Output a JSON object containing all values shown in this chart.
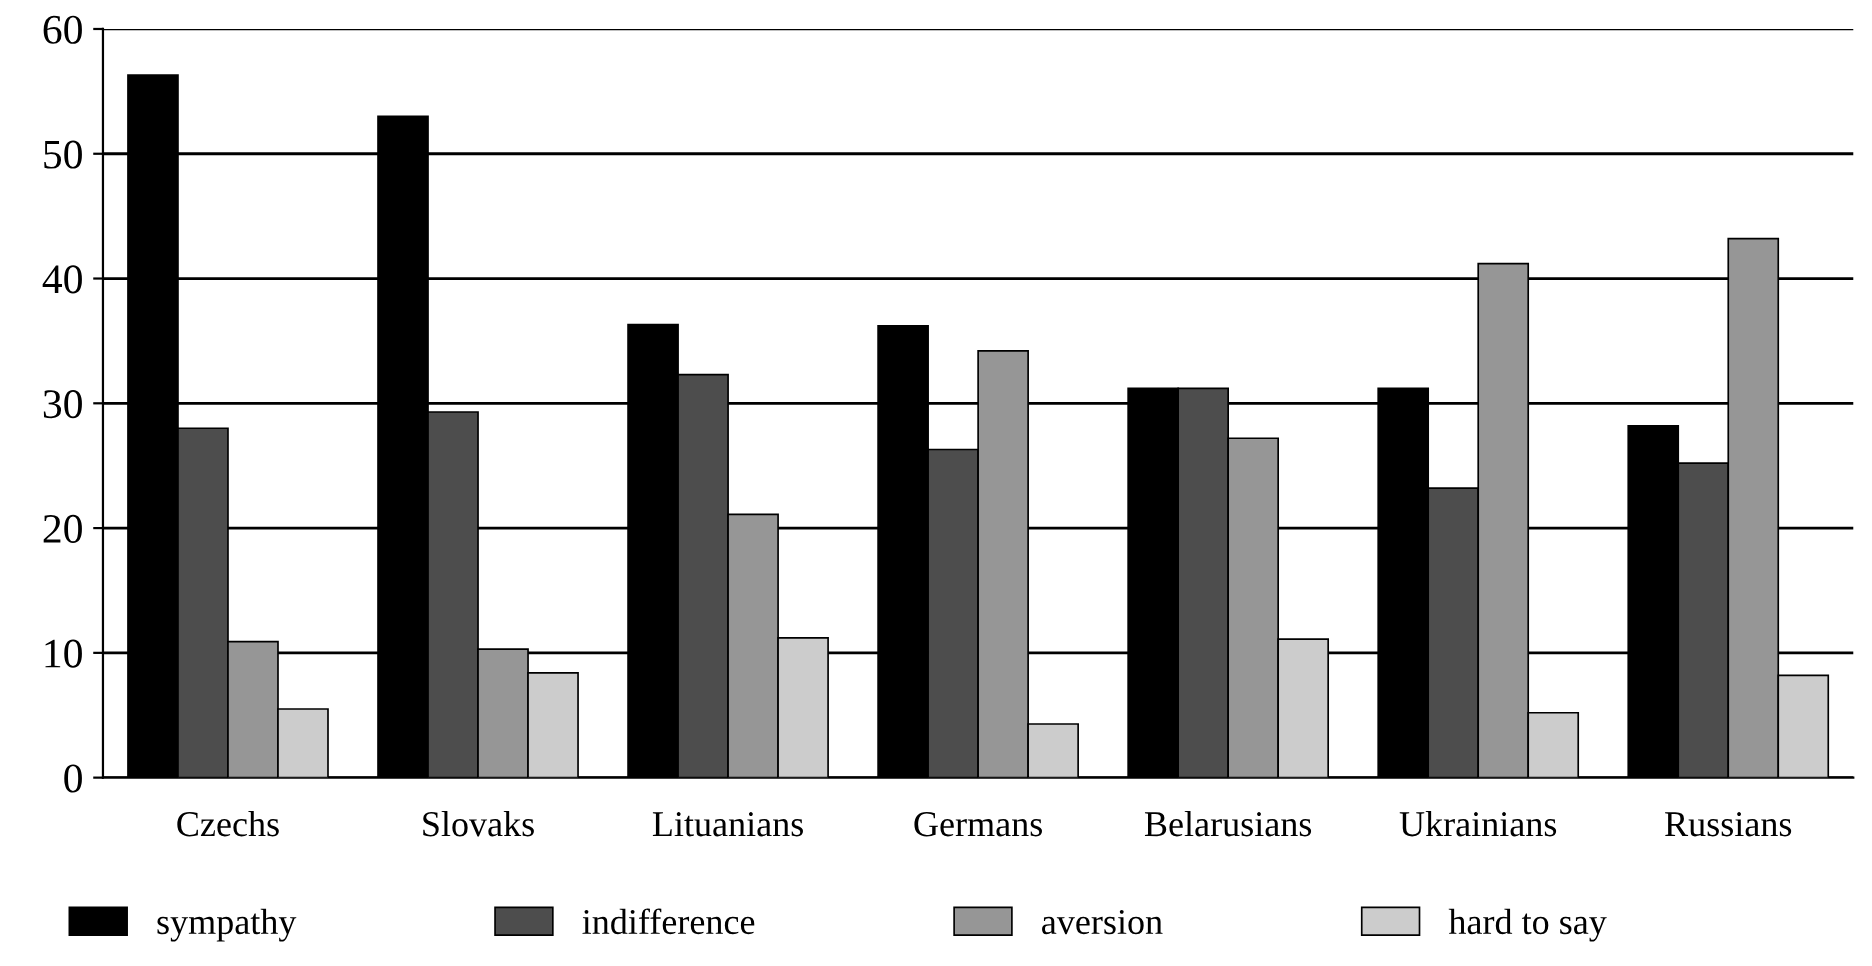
{
  "chart_data": {
    "type": "bar",
    "categories": [
      "Czechs",
      "Slovaks",
      "Lituanians",
      "Germans",
      "Belarusians",
      "Ukrainians",
      "Russians"
    ],
    "series": [
      {
        "name": "sympathy",
        "color": "#000000",
        "values": [
          56.3,
          53.0,
          36.3,
          36.2,
          31.2,
          31.2,
          28.2
        ]
      },
      {
        "name": "indifference",
        "color": "#4d4d4d",
        "values": [
          28.0,
          29.3,
          32.3,
          26.3,
          31.2,
          23.2,
          25.2
        ]
      },
      {
        "name": "aversion",
        "color": "#969696",
        "values": [
          10.9,
          10.3,
          21.1,
          34.2,
          27.2,
          41.2,
          43.2
        ]
      },
      {
        "name": "hard to say",
        "color": "#cccccc",
        "values": [
          5.5,
          8.4,
          11.2,
          4.3,
          11.1,
          5.2,
          8.2
        ]
      }
    ],
    "ylim": [
      0,
      60
    ],
    "yticks": [
      0,
      10,
      20,
      30,
      40,
      50,
      60
    ],
    "grid": "y",
    "legend": "bottom"
  }
}
